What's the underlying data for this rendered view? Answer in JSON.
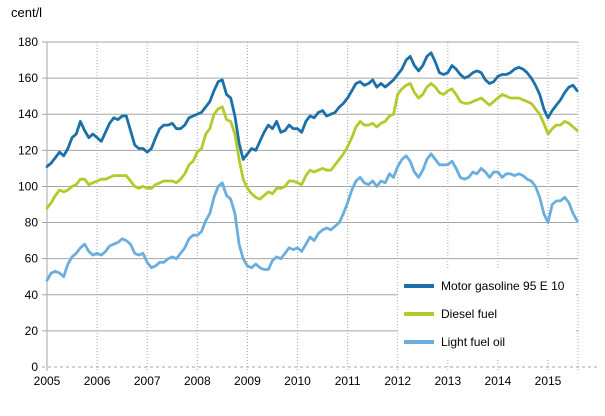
{
  "unit_label": "cent/l",
  "chart_data": {
    "type": "line",
    "title": "",
    "unit_label": "cent/l",
    "xlabel": "",
    "ylabel": "cent/l",
    "ylim": [
      0,
      180
    ],
    "y_tick_step": 20,
    "y_ticks": [
      0,
      20,
      40,
      60,
      80,
      100,
      120,
      140,
      160,
      180
    ],
    "x_tick_labels": [
      "2005",
      "2006",
      "2007",
      "2008",
      "2009",
      "2010",
      "2011",
      "2012",
      "2013",
      "2014",
      "2015"
    ],
    "x_start": "2005-01",
    "x_end": "2015-08",
    "interval": "monthly",
    "grid": {
      "horizontal": "solid",
      "vertical": "dotted-yearly"
    },
    "legend_position": "inside-lower-right",
    "series": [
      {
        "name": "Motor gasoline 95 E 10",
        "color": "#1c70a8",
        "values": [
          111,
          113,
          116,
          119,
          117,
          121,
          127,
          129,
          136,
          131,
          127,
          129,
          127,
          125,
          130,
          135,
          138,
          137,
          139,
          139,
          131,
          123,
          121,
          121,
          119,
          121,
          127,
          132,
          134,
          134,
          135,
          132,
          132,
          134,
          138,
          139,
          140,
          141,
          144,
          147,
          153,
          158,
          159,
          151,
          149,
          139,
          124,
          115,
          118,
          121,
          120,
          125,
          130,
          134,
          132,
          136,
          130,
          131,
          134,
          132,
          132,
          130,
          136,
          139,
          138,
          141,
          142,
          139,
          140,
          141,
          144,
          146,
          149,
          153,
          157,
          158,
          156,
          157,
          159,
          155,
          157,
          155,
          157,
          159,
          162,
          165,
          170,
          172,
          167,
          164,
          167,
          172,
          174,
          169,
          163,
          162,
          163,
          167,
          165,
          162,
          160,
          161,
          163,
          164,
          163,
          159,
          157,
          158,
          161,
          162,
          162,
          163,
          165,
          166,
          165,
          163,
          160,
          156,
          151,
          143,
          138,
          142,
          145,
          148,
          152,
          155,
          156,
          153
        ]
      },
      {
        "name": "Diesel fuel",
        "color": "#b4c92b",
        "values": [
          88,
          91,
          95,
          98,
          97,
          98,
          100,
          101,
          104,
          104,
          101,
          102,
          103,
          104,
          104,
          105,
          106,
          106,
          106,
          106,
          103,
          100,
          99,
          100,
          99,
          99,
          101,
          102,
          103,
          103,
          103,
          102,
          104,
          107,
          112,
          114,
          119,
          121,
          129,
          132,
          140,
          143,
          144,
          137,
          136,
          129,
          115,
          104,
          99,
          96,
          94,
          93,
          95,
          97,
          96,
          99,
          99,
          100,
          103,
          103,
          102,
          101,
          106,
          109,
          108,
          109,
          110,
          109,
          109,
          112,
          115,
          118,
          122,
          127,
          133,
          136,
          134,
          134,
          135,
          133,
          135,
          136,
          139,
          140,
          151,
          154,
          156,
          157,
          152,
          149,
          151,
          155,
          157,
          155,
          152,
          151,
          153,
          154,
          151,
          147,
          146,
          146,
          147,
          148,
          149,
          147,
          145,
          147,
          149,
          151,
          150,
          149,
          149,
          149,
          148,
          147,
          146,
          143,
          140,
          135,
          129,
          132,
          134,
          134,
          136,
          135,
          133,
          131
        ]
      },
      {
        "name": "Light fuel oil",
        "color": "#6aaede",
        "values": [
          48,
          52,
          53,
          52,
          50,
          57,
          61,
          63,
          66,
          68,
          64,
          62,
          63,
          62,
          64,
          67,
          68,
          69,
          71,
          70,
          68,
          63,
          62,
          63,
          58,
          55,
          56,
          58,
          58,
          60,
          61,
          60,
          63,
          66,
          71,
          73,
          73,
          75,
          81,
          85,
          94,
          100,
          102,
          95,
          93,
          85,
          68,
          60,
          56,
          55,
          57,
          55,
          54,
          54,
          59,
          61,
          60,
          63,
          66,
          65,
          66,
          64,
          68,
          72,
          70,
          74,
          76,
          77,
          76,
          78,
          80,
          85,
          91,
          98,
          103,
          105,
          102,
          101,
          103,
          100,
          103,
          102,
          107,
          105,
          111,
          115,
          117,
          114,
          108,
          105,
          109,
          115,
          118,
          115,
          112,
          112,
          112,
          114,
          110,
          105,
          104,
          105,
          108,
          107,
          110,
          108,
          105,
          108,
          108,
          105,
          107,
          107,
          106,
          107,
          106,
          104,
          103,
          100,
          94,
          85,
          80,
          90,
          92,
          92,
          94,
          91,
          85,
          81
        ]
      }
    ]
  }
}
